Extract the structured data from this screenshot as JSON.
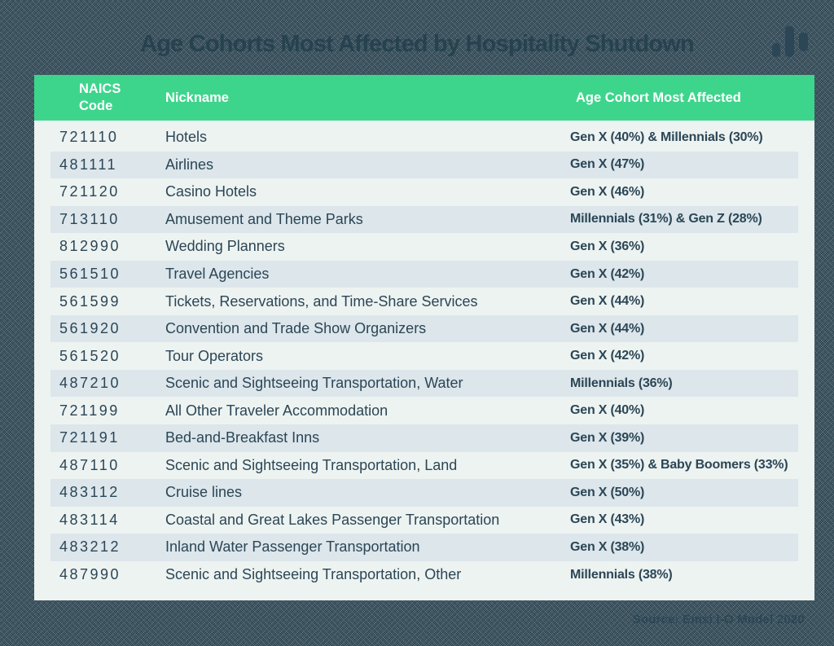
{
  "title": "Age Cohorts Most Affected by Hospitality Shutdown",
  "source_note": "Source: Emsi I-O Model 2020",
  "icons": {
    "title_icon": "bar-chart-icon"
  },
  "colors": {
    "header_green": "#3dd58c",
    "text_navy": "#2b4656",
    "title_navy": "#27424f",
    "row_stripe": "#dce6eb",
    "card_bg": "#edf3f1"
  },
  "chart_data": {
    "type": "table",
    "title": "Age Cohorts Most Affected by Hospitality Shutdown",
    "columns": [
      "NAICS Code",
      "Nickname",
      "Age Cohort Most Affected"
    ],
    "rows": [
      {
        "code": "721110",
        "nickname": "Hotels",
        "cohort": "Gen X (40%) & Millennials (30%)"
      },
      {
        "code": "481111",
        "nickname": "Airlines",
        "cohort": "Gen X (47%)"
      },
      {
        "code": "721120",
        "nickname": "Casino Hotels",
        "cohort": "Gen X (46%)"
      },
      {
        "code": "713110",
        "nickname": "Amusement and Theme Parks",
        "cohort": "Millennials (31%) & Gen Z (28%)"
      },
      {
        "code": "812990",
        "nickname": "Wedding Planners",
        "cohort": "Gen X (36%)"
      },
      {
        "code": "561510",
        "nickname": "Travel Agencies",
        "cohort": "Gen X (42%)"
      },
      {
        "code": "561599",
        "nickname": "Tickets, Reservations, and Time-Share Services",
        "cohort": "Gen X (44%)"
      },
      {
        "code": "561920",
        "nickname": "Convention and Trade Show Organizers",
        "cohort": "Gen X (44%)"
      },
      {
        "code": "561520",
        "nickname": "Tour Operators",
        "cohort": "Gen X (42%)"
      },
      {
        "code": "487210",
        "nickname": "Scenic and Sightseeing Transportation, Water",
        "cohort": "Millennials (36%)"
      },
      {
        "code": "721199",
        "nickname": "All Other Traveler Accommodation",
        "cohort": "Gen X (40%)"
      },
      {
        "code": "721191",
        "nickname": "Bed-and-Breakfast Inns",
        "cohort": "Gen X (39%)"
      },
      {
        "code": "487110",
        "nickname": "Scenic and Sightseeing Transportation, Land",
        "cohort": "Gen X (35%) & Baby Boomers (33%)"
      },
      {
        "code": "483112",
        "nickname": "Cruise lines",
        "cohort": "Gen X (50%)"
      },
      {
        "code": "483114",
        "nickname": "Coastal and Great Lakes Passenger Transportation",
        "cohort": "Gen X (43%)"
      },
      {
        "code": "483212",
        "nickname": "Inland Water Passenger Transportation",
        "cohort": "Gen X (38%)"
      },
      {
        "code": "487990",
        "nickname": "Scenic and Sightseeing Transportation, Other",
        "cohort": "Millennials (38%)"
      }
    ],
    "source": "Source: Emsi I-O Model 2020",
    "layout": {
      "stripes": "alternating starting with plain row",
      "header_text_color": "#ffffff"
    }
  }
}
